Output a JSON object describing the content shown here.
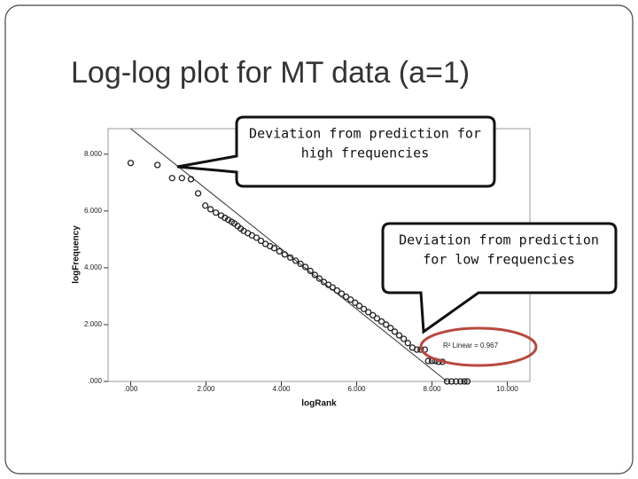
{
  "slide_title": "Log-log plot for MT data (a=1)",
  "chart_data": {
    "type": "scatter",
    "x_label": "logRank",
    "y_label": "logFrequency",
    "xlim": [
      -0.6,
      10.6
    ],
    "ylim": [
      0,
      8.9
    ],
    "xticks": [
      {
        "value": 0,
        "label": ".000"
      },
      {
        "value": 2,
        "label": "2.000"
      },
      {
        "value": 4,
        "label": "4.000"
      },
      {
        "value": 6,
        "label": "6.000"
      },
      {
        "value": 8,
        "label": "8.000"
      },
      {
        "value": 10,
        "label": "10.000"
      }
    ],
    "yticks": [
      {
        "value": 0,
        "label": ".000"
      },
      {
        "value": 2,
        "label": "2.000"
      },
      {
        "value": 4,
        "label": "4.000"
      },
      {
        "value": 6,
        "label": "6.000"
      },
      {
        "value": 8,
        "label": "8.000"
      }
    ],
    "series": [
      {
        "color": "#222222",
        "x": [
          0,
          0.71,
          1.1,
          1.36,
          1.6,
          1.79,
          1.98,
          2.12,
          2.26,
          2.4,
          2.5,
          2.59,
          2.68,
          2.75,
          2.84,
          2.92,
          3.0,
          3.11,
          3.22,
          3.34,
          3.46,
          3.58,
          3.7,
          3.81,
          3.95,
          4.09,
          4.24,
          4.38,
          4.51,
          4.64,
          4.77,
          4.89,
          5.01,
          5.13,
          5.25,
          5.36,
          5.48,
          5.6,
          5.72,
          5.84,
          5.96,
          6.07,
          6.19,
          6.31,
          6.43,
          6.54,
          6.66,
          6.78,
          6.9,
          7.01,
          7.13,
          7.25,
          7.36,
          7.48,
          7.6,
          7.7,
          7.81,
          7.9,
          8.0,
          8.09,
          8.18,
          8.28,
          8.4,
          8.52,
          8.64,
          8.76,
          8.86,
          8.94
        ],
        "values": [
          7.69,
          7.62,
          7.16,
          7.16,
          7.12,
          6.62,
          6.19,
          6.06,
          5.94,
          5.84,
          5.76,
          5.69,
          5.62,
          5.56,
          5.47,
          5.38,
          5.3,
          5.22,
          5.14,
          5.06,
          4.95,
          4.84,
          4.76,
          4.69,
          4.58,
          4.47,
          4.36,
          4.25,
          4.14,
          4.03,
          3.89,
          3.75,
          3.62,
          3.5,
          3.4,
          3.31,
          3.2,
          3.09,
          2.98,
          2.88,
          2.77,
          2.66,
          2.55,
          2.44,
          2.33,
          2.22,
          2.11,
          2.0,
          1.88,
          1.75,
          1.62,
          1.5,
          1.35,
          1.19,
          1.12,
          1.12,
          1.12,
          0.72,
          0.72,
          0.72,
          0.69,
          0.69,
          0,
          0,
          0,
          0,
          0,
          0
        ]
      }
    ],
    "fit_line": {
      "x": [
        0,
        8.4
      ],
      "y": [
        8.9,
        0
      ]
    },
    "annotation": "R² Linear = 0.967"
  },
  "callouts": [
    {
      "lines": [
        "Deviation from prediction for",
        "high frequencies"
      ]
    },
    {
      "lines": [
        "Deviation from prediction",
        "for low frequencies"
      ]
    }
  ]
}
